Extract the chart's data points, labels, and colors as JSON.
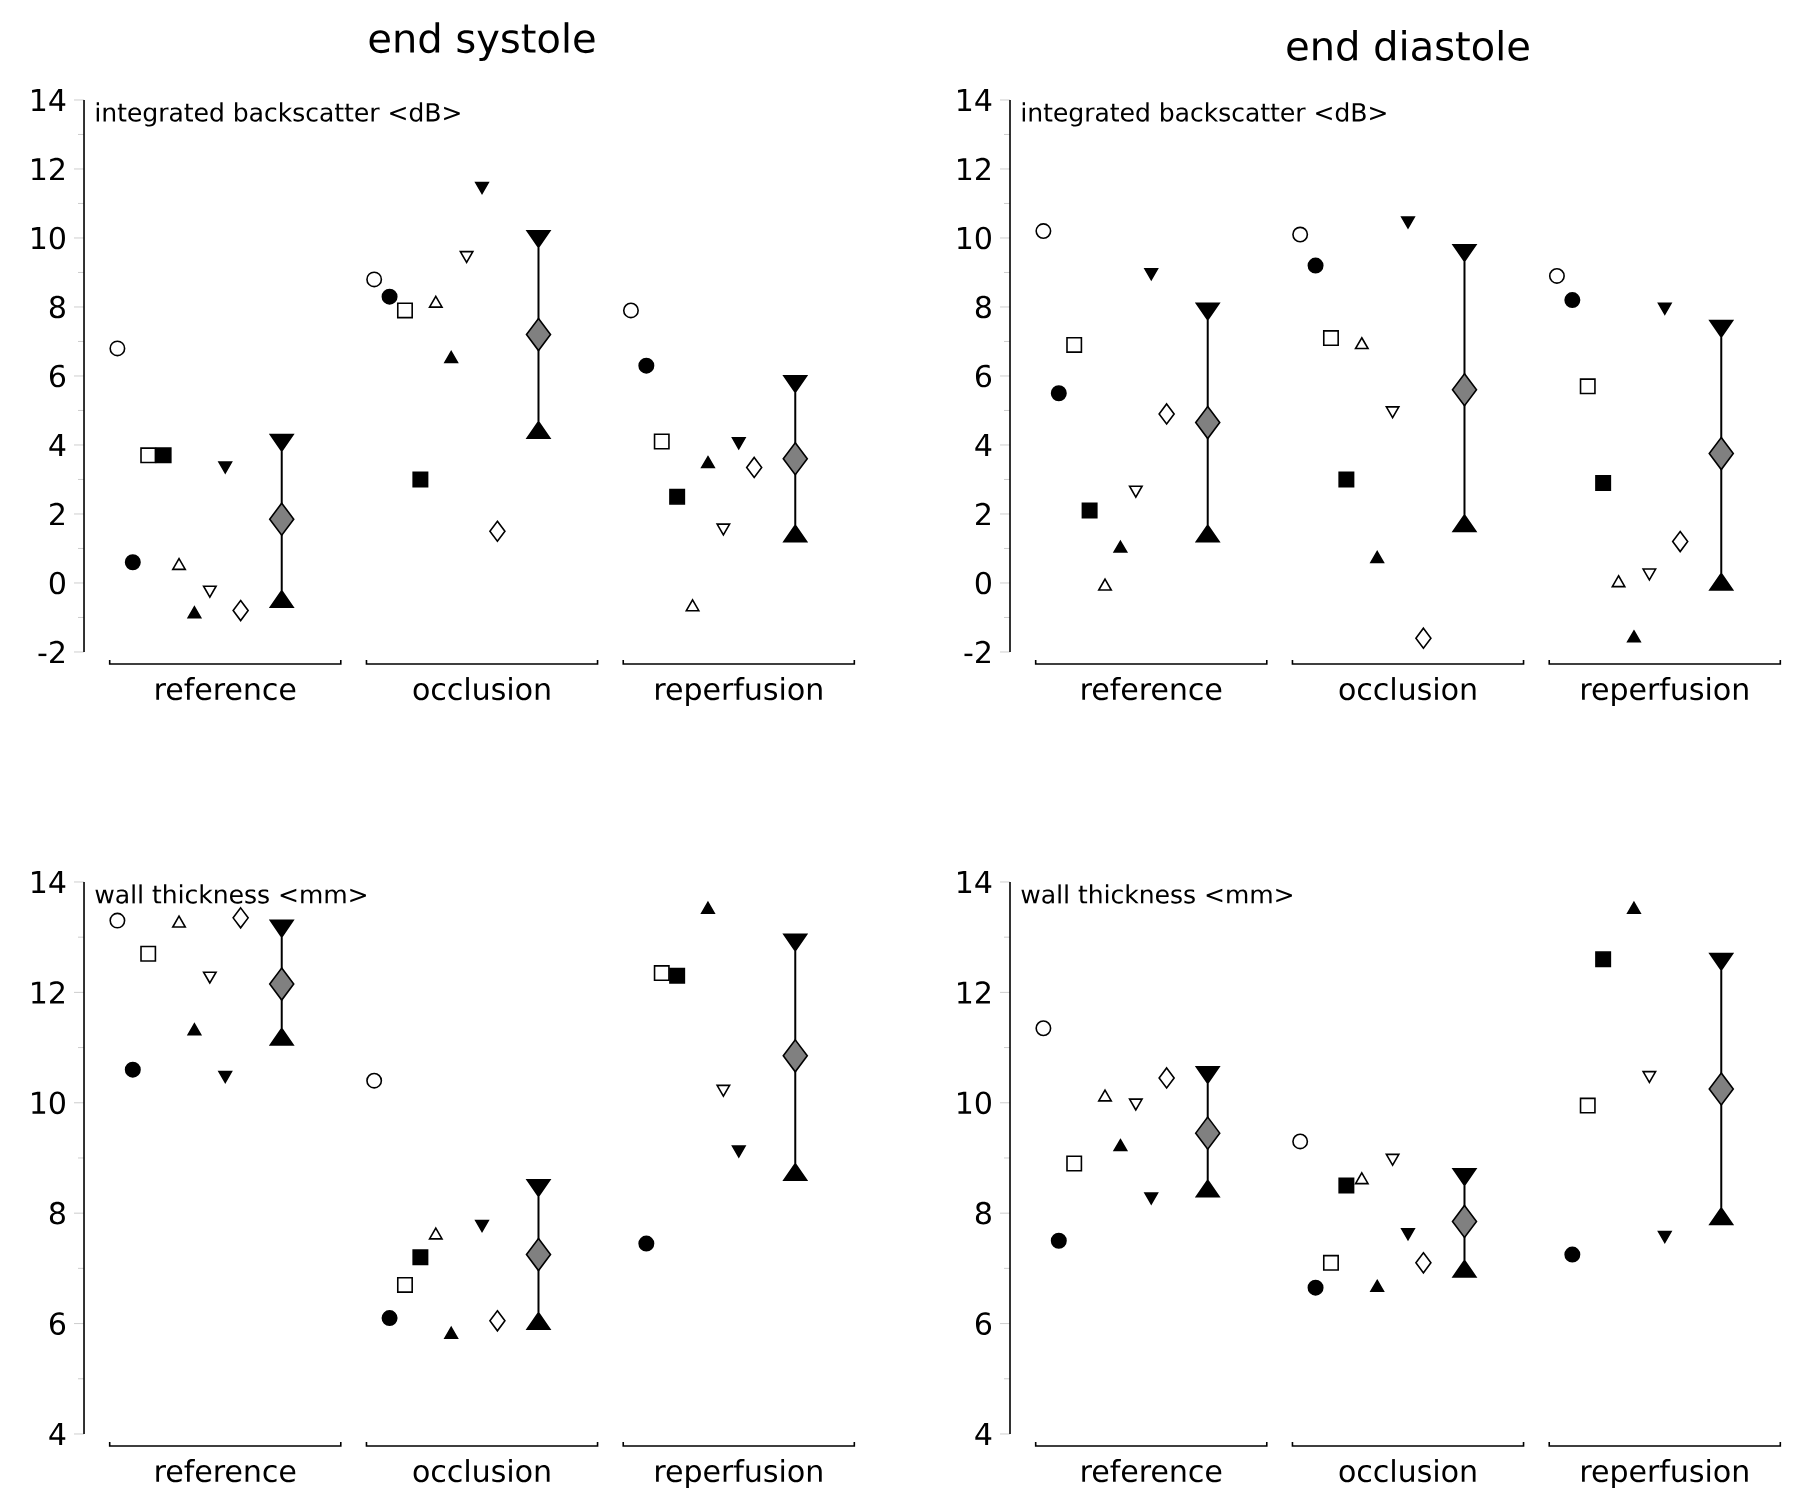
{
  "chart_data": [
    {
      "type": "scatter",
      "title": "end systole",
      "ylabel": "integrated backscatter <dB>",
      "categories": [
        "reference",
        "occlusion",
        "reperfusion"
      ],
      "ylim": [
        -2,
        14
      ],
      "yticks": [
        -2,
        0,
        2,
        4,
        6,
        8,
        10,
        12,
        14
      ],
      "series": [
        {
          "marker": "circle",
          "color": "#ffffff",
          "values": [
            6.8,
            8.8,
            7.9
          ]
        },
        {
          "marker": "circle",
          "color": "#000000",
          "values": [
            0.6,
            8.3,
            6.3
          ]
        },
        {
          "marker": "square",
          "color": "#ffffff",
          "values": [
            3.7,
            7.9,
            4.1
          ]
        },
        {
          "marker": "square",
          "color": "#000000",
          "values": [
            3.7,
            3.0,
            2.5
          ]
        },
        {
          "marker": "triangle",
          "color": "#ffffff",
          "values": [
            0.5,
            8.1,
            -0.7
          ]
        },
        {
          "marker": "triangle",
          "color": "#000000",
          "values": [
            -0.9,
            6.5,
            3.45
          ]
        },
        {
          "marker": "triangle-down",
          "color": "#ffffff",
          "values": [
            -0.2,
            9.5,
            1.6
          ]
        },
        {
          "marker": "triangle-down",
          "color": "#000000",
          "values": [
            3.4,
            11.5,
            4.1
          ]
        },
        {
          "marker": "diamond",
          "color": "#ffffff",
          "values": [
            -0.8,
            1.5,
            3.35
          ]
        },
        {
          "marker": "diamond",
          "color": "#808080",
          "values": [
            1.85,
            7.2,
            3.6
          ],
          "errors": [
            [
              -0.7,
              4.3
            ],
            [
              4.2,
              10.2
            ],
            [
              1.2,
              6.0
            ]
          ]
        }
      ]
    },
    {
      "type": "scatter",
      "title": "end diastole",
      "ylabel": "integrated backscatter <dB>",
      "categories": [
        "reference",
        "occlusion",
        "reperfusion"
      ],
      "ylim": [
        -2,
        14
      ],
      "yticks": [
        -2,
        0,
        2,
        4,
        6,
        8,
        10,
        12,
        14
      ],
      "series": [
        {
          "marker": "circle",
          "color": "#ffffff",
          "values": [
            10.2,
            10.1,
            8.9
          ]
        },
        {
          "marker": "circle",
          "color": "#000000",
          "values": [
            5.5,
            9.2,
            8.2
          ]
        },
        {
          "marker": "square",
          "color": "#ffffff",
          "values": [
            6.9,
            7.1,
            5.7
          ]
        },
        {
          "marker": "square",
          "color": "#000000",
          "values": [
            2.1,
            3.0,
            2.9
          ]
        },
        {
          "marker": "triangle",
          "color": "#ffffff",
          "values": [
            -0.1,
            6.9,
            0.0
          ]
        },
        {
          "marker": "triangle",
          "color": "#000000",
          "values": [
            1.0,
            0.7,
            -1.6
          ]
        },
        {
          "marker": "triangle-down",
          "color": "#ffffff",
          "values": [
            2.7,
            5.0,
            0.3
          ]
        },
        {
          "marker": "triangle-down",
          "color": "#000000",
          "values": [
            9.0,
            10.5,
            8.0
          ]
        },
        {
          "marker": "diamond",
          "color": "#ffffff",
          "values": [
            4.9,
            -1.6,
            1.2
          ]
        },
        {
          "marker": "diamond",
          "color": "#808080",
          "values": [
            4.65,
            5.6,
            3.75
          ],
          "errors": [
            [
              1.2,
              8.1
            ],
            [
              1.5,
              9.8
            ],
            [
              -0.2,
              7.6
            ]
          ]
        }
      ]
    },
    {
      "type": "scatter",
      "ylabel": "wall thickness <mm>",
      "categories": [
        "reference",
        "occlusion",
        "reperfusion"
      ],
      "ylim": [
        4,
        14
      ],
      "yticks": [
        4,
        6,
        8,
        10,
        12,
        14
      ],
      "series": [
        {
          "marker": "circle",
          "color": "#ffffff",
          "values": [
            13.3,
            10.4,
            null
          ]
        },
        {
          "marker": "circle",
          "color": "#000000",
          "values": [
            10.6,
            6.1,
            7.45
          ]
        },
        {
          "marker": "square",
          "color": "#ffffff",
          "values": [
            12.7,
            6.7,
            12.35
          ]
        },
        {
          "marker": "square",
          "color": "#000000",
          "values": [
            null,
            7.2,
            12.3
          ]
        },
        {
          "marker": "triangle",
          "color": "#ffffff",
          "values": [
            13.25,
            7.6,
            null
          ]
        },
        {
          "marker": "triangle",
          "color": "#000000",
          "values": [
            11.3,
            5.8,
            13.5
          ]
        },
        {
          "marker": "triangle-down",
          "color": "#ffffff",
          "values": [
            12.3,
            null,
            10.25
          ]
        },
        {
          "marker": "triangle-down",
          "color": "#000000",
          "values": [
            10.5,
            7.8,
            9.15
          ]
        },
        {
          "marker": "diamond",
          "color": "#ffffff",
          "values": [
            13.35,
            6.05,
            null
          ]
        },
        {
          "marker": "diamond",
          "color": "#808080",
          "values": [
            12.15,
            7.25,
            10.85
          ],
          "errors": [
            [
              11.05,
              13.3
            ],
            [
              5.9,
              8.6
            ],
            [
              8.6,
              13.05
            ]
          ]
        }
      ]
    },
    {
      "type": "scatter",
      "ylabel": "wall thickness <mm>",
      "categories": [
        "reference",
        "occlusion",
        "reperfusion"
      ],
      "ylim": [
        4,
        14
      ],
      "yticks": [
        4,
        6,
        8,
        10,
        12,
        14
      ],
      "series": [
        {
          "marker": "circle",
          "color": "#ffffff",
          "values": [
            11.35,
            9.3,
            null
          ]
        },
        {
          "marker": "circle",
          "color": "#000000",
          "values": [
            7.5,
            6.65,
            7.25
          ]
        },
        {
          "marker": "square",
          "color": "#ffffff",
          "values": [
            8.9,
            7.1,
            9.95
          ]
        },
        {
          "marker": "square",
          "color": "#000000",
          "values": [
            null,
            8.5,
            12.6
          ]
        },
        {
          "marker": "triangle",
          "color": "#ffffff",
          "values": [
            10.1,
            8.6,
            null
          ]
        },
        {
          "marker": "triangle",
          "color": "#000000",
          "values": [
            9.2,
            6.65,
            13.5
          ]
        },
        {
          "marker": "triangle-down",
          "color": "#ffffff",
          "values": [
            10.0,
            9.0,
            10.5
          ]
        },
        {
          "marker": "triangle-down",
          "color": "#000000",
          "values": [
            8.3,
            7.65,
            7.6
          ]
        },
        {
          "marker": "diamond",
          "color": "#ffffff",
          "values": [
            10.45,
            7.1,
            null
          ]
        },
        {
          "marker": "diamond",
          "color": "#808080",
          "values": [
            9.45,
            7.85,
            10.25
          ],
          "errors": [
            [
              8.3,
              10.65
            ],
            [
              6.85,
              8.8
            ],
            [
              7.8,
              12.7
            ]
          ]
        }
      ]
    }
  ]
}
